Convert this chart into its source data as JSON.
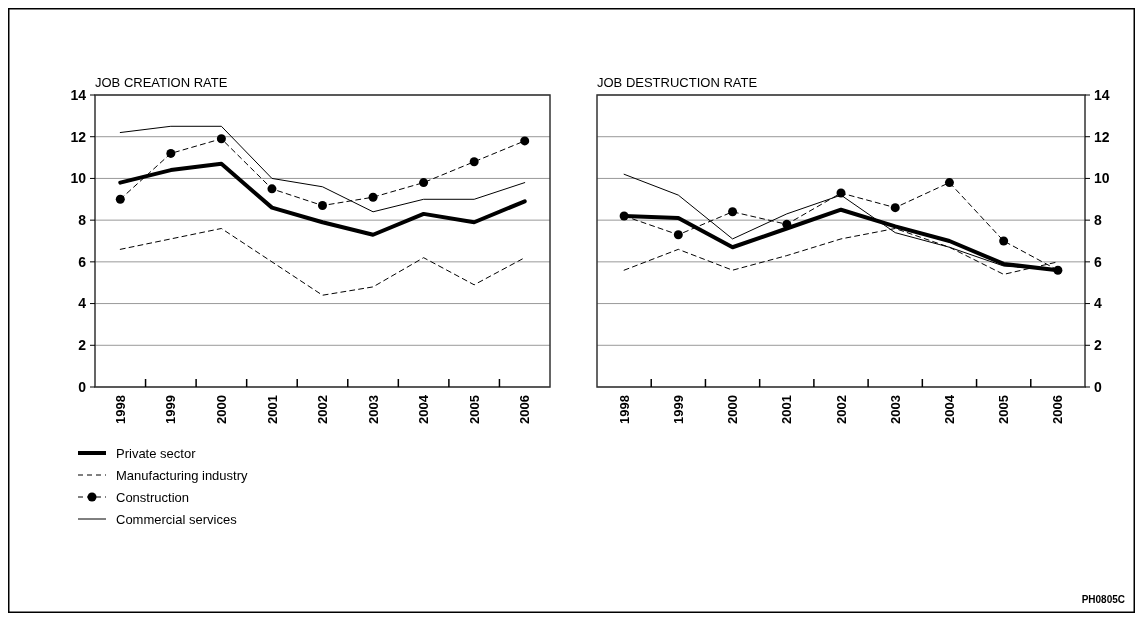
{
  "chart_data": [
    {
      "type": "line",
      "title": "JOB CREATION RATE",
      "categories": [
        "1998",
        "1999",
        "2000",
        "2001",
        "2002",
        "2003",
        "2004",
        "2005",
        "2006"
      ],
      "ylim": [
        0,
        14
      ],
      "yticks": [
        0,
        2,
        4,
        6,
        8,
        10,
        12,
        14
      ],
      "grid": "y",
      "legend": "bottom",
      "series": [
        {
          "name": "Private sector",
          "color": "#000000",
          "line_style": "solid",
          "values": [
            9.8,
            10.4,
            10.7,
            8.6,
            7.9,
            7.3,
            8.3,
            7.9,
            8.9
          ]
        },
        {
          "name": "Manufacturing industry",
          "color": "#000000",
          "line_style": "dashed",
          "values": [
            6.6,
            7.1,
            7.6,
            6.0,
            4.4,
            4.8,
            6.2,
            4.9,
            6.2
          ]
        },
        {
          "name": "Construction",
          "color": "#000000",
          "line_style": "dashed",
          "marker": "circle",
          "values": [
            9.0,
            11.2,
            11.9,
            9.5,
            8.7,
            9.1,
            9.8,
            10.8,
            11.8
          ]
        },
        {
          "name": "Commercial services",
          "color": "#000000",
          "line_style": "solid",
          "values": [
            12.2,
            12.5,
            12.5,
            10.0,
            9.6,
            8.4,
            9.0,
            9.0,
            9.8
          ]
        }
      ]
    },
    {
      "type": "line",
      "title": "JOB DESTRUCTION RATE",
      "categories": [
        "1998",
        "1999",
        "2000",
        "2001",
        "2002",
        "2003",
        "2004",
        "2005",
        "2006"
      ],
      "ylim": [
        0,
        14
      ],
      "yticks": [
        0,
        2,
        4,
        6,
        8,
        10,
        12,
        14
      ],
      "grid": "y",
      "annotations": [
        "PH0805C"
      ],
      "series": [
        {
          "color": "#000000",
          "line_style": "solid",
          "values": [
            8.2,
            8.1,
            6.7,
            7.6,
            8.5,
            7.7,
            7.0,
            5.9,
            5.6
          ]
        },
        {
          "color": "#000000",
          "line_style": "dashed",
          "values": [
            5.6,
            6.6,
            5.6,
            6.3,
            7.1,
            7.6,
            6.7,
            5.4,
            6.0
          ]
        },
        {
          "color": "#000000",
          "line_style": "dashed",
          "marker": "circle",
          "values": [
            8.2,
            7.3,
            8.4,
            7.8,
            9.3,
            8.6,
            9.8,
            7.0,
            5.6
          ]
        },
        {
          "color": "#000000",
          "line_style": "solid",
          "values": [
            10.2,
            9.2,
            7.1,
            8.3,
            9.2,
            7.4,
            6.7,
            5.8,
            5.6
          ]
        }
      ]
    }
  ]
}
